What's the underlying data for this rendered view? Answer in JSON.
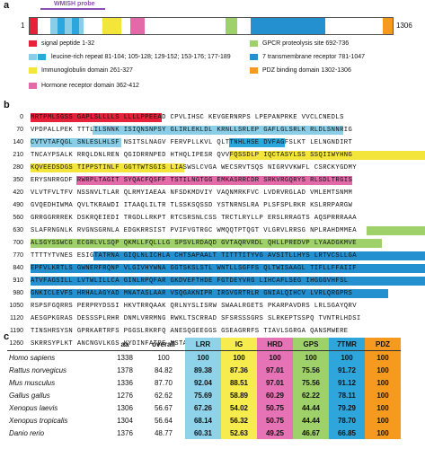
{
  "panel_a": {
    "label": "a",
    "probe_label": "WMISH probe",
    "start": "1",
    "end": "1306",
    "legend": [
      {
        "text": "signal peptide 1-32",
        "colors": [
          "#e6213a"
        ]
      },
      {
        "text": "GPCR proteolysis site 692-736",
        "colors": [
          "#9fd16a"
        ]
      },
      {
        "text": "leucine-rich repeat 81-104; 105-128; 129-152; 153-176; 177-189",
        "colors": [
          "#89cde6",
          "#2ca7de"
        ]
      },
      {
        "text": "7 transmembrane receptor 781-1047",
        "colors": [
          "#2590d0"
        ]
      },
      {
        "text": "Immunoglobulin domain 261-327",
        "colors": [
          "#f4e53a"
        ]
      },
      {
        "text": "PDZ binding domain 1302-1306",
        "colors": [
          "#f59a1e"
        ]
      },
      {
        "text": "Hormone receptor domain 362-412",
        "colors": [
          "#e26aa8"
        ]
      }
    ]
  },
  "panel_b": {
    "label": "b",
    "rows": [
      {
        "num": "0",
        "seq": "MRTPMLSGSS GAPLSLLLLS LLLLPPEEAD CPVLIHSC KEVGERNRPS LPEPANPRKE VVCLCNEDLS"
      },
      {
        "num": "70",
        "seq": "VPDPALLPEK TTTLILSNNK ISIQNSNPSY GLIRLEKLDL KRNLLSRLEP GAFLGLSRLK RLDLSNNRIG"
      },
      {
        "num": "140",
        "seq": "CVTVTAFQGL SNLESLHLSF NSITSLNAGV FERVPLLKVL QLTTNHLHSE DVFAGFSLKT LELNGNDIRT"
      },
      {
        "num": "210",
        "seq": "TNCAYPSALK RRQLDNLREN QGIDRRNPED HTHQLIPESR QVVFQSSDLP IQCTASYLSS SSQIIWYHNG"
      },
      {
        "num": "280",
        "seq": "KQVEEDSDGS TIPPSTINLF GGTTWTSGIS LIASWSLCVGA WECSRVTSQS NIGRVVKWFL CSRCKYGDMY"
      },
      {
        "num": "350",
        "seq": "ERYSNRRGDF RWRPLTAGIT SYQACFQSFF TSTILNGTGG EMKASRRCDR SRKVRGQRYS RLSDLTRGIS"
      },
      {
        "num": "420",
        "seq": "VLVTFVLTFV NSSNVLTLAR QLRMYIAEAA NFSDKMDVIY VAQNMRKFVC LVDRVRGLAD VMLEMTSNMM"
      },
      {
        "num": "490",
        "seq": "GVQEDHIWMA QVLTKRAWDI ITAAQLILTR TLSSKSQSSD YSTNRNSLRA PLSFSPLRKR KSLRRPARGW"
      },
      {
        "num": "560",
        "seq": "GRRGGRRREK DSKRQEIEDI TRGDLLRKPT RTCSRSNLCSS TRCTLRYLLP ERSLRRAGTS AQSPRRRAAA"
      },
      {
        "num": "630",
        "seq": "SLAFRNGNLK RVGNSGRNLA EDGKRRSIST PVIFVGTRGC WMQQTPTQGT VLGRVLRRSG NPLRAHDMMEA"
      },
      {
        "num": "700",
        "seq": "ALSGYSSWCG ECGRLVLSQP QKMLLFQLLLG SPSVLRDAQD GVTAQRVRDL QHLLPREDVP LYAADGKMVE"
      },
      {
        "num": "770",
        "seq": "TTTTYTVNES ESIGTATRNA GIQLNLICHLA CHTSAPAALT TITTTITYVG AVSITLLHYS LRTVCSLLGA"
      },
      {
        "num": "840",
        "seq": "EPFVLKRTLS GWNERFRQNP VLGIVHYWNA GGTSKSLSTL WNTLLSGFFS QLTWISAAGL TIFLLFFAIIF"
      },
      {
        "num": "910",
        "seq": "ATVFAGSILL LVTWLILLCA GINLRPQFAR GKDVEFTHDE FGTDEYVRG LIHCAFLSEG IHGGGVHFSL"
      },
      {
        "num": "980",
        "seq": "GNKICLEVFS HRHALAGYAD MNATASLAAR VSQGAKNIPR IRGVGRTRLR GNIALQIHCV LVRLQRGPRS"
      },
      {
        "num": "1050",
        "seq": "RSPSFGQRRS PERPRYDSSI HKVTRRQAAK QRLNYSLISRW SWAALRGETS PKARPAVDRS LRLSGAYQRV"
      },
      {
        "num": "1120",
        "seq": "AESGPKGRAS DESSSPLRHR DNMLVRRMNG RWKLTSCRRAD SFSRSSSGRS SLRKEPTSSPQ TVNTRLHDSI"
      },
      {
        "num": "1190",
        "seq": "TINSHRSYSN GPRKARTRFS PGGSLRKRFQ ANESQGEEGGS GSEAGRRFS TIAVLSGRGA QANSMWERE"
      },
      {
        "num": "1260",
        "seq": "SKRRSYPLKT ANCNGVLKGS KYDINFATPE MSTAKKTGLN ESETTV"
      }
    ]
  },
  "panel_c": {
    "label": "c",
    "headers": [
      "",
      "aa",
      "overall",
      "LRR",
      "IG",
      "HRD",
      "GPS",
      "7TMR",
      "PDZ"
    ],
    "header_colors": [
      "",
      "",
      "",
      "#8fd3ea",
      "#f7ec4d",
      "#e573b5",
      "#9fd16a",
      "#2ea6dc",
      "#f59a1e"
    ],
    "rows": [
      {
        "species": "Homo sapiens",
        "aa": "1338",
        "overall": "100",
        "LRR": "100",
        "IG": "100",
        "HRD": "100",
        "GPS": "100",
        "7TMR": "100",
        "PDZ": "100"
      },
      {
        "species": "Rattus norvegicus",
        "aa": "1378",
        "overall": "84.82",
        "LRR": "89.38",
        "IG": "87.36",
        "HRD": "97.01",
        "GPS": "75.56",
        "7TMR": "91.72",
        "PDZ": "100"
      },
      {
        "species": "Mus musculus",
        "aa": "1336",
        "overall": "87.70",
        "LRR": "92.04",
        "IG": "88.51",
        "HRD": "97.01",
        "GPS": "75.56",
        "7TMR": "91.12",
        "PDZ": "100"
      },
      {
        "species": "Gallus gallus",
        "aa": "1276",
        "overall": "62.62",
        "LRR": "75.69",
        "IG": "58.89",
        "HRD": "60.29",
        "GPS": "62.22",
        "7TMR": "78.11",
        "PDZ": "100"
      },
      {
        "species": "Xenopus laevis",
        "aa": "1306",
        "overall": "56.67",
        "LRR": "67.26",
        "IG": "54.02",
        "HRD": "50.75",
        "GPS": "44.44",
        "7TMR": "79.29",
        "PDZ": "100"
      },
      {
        "species": "Xenopus tropicalis",
        "aa": "1304",
        "overall": "56.64",
        "LRR": "68.14",
        "IG": "56.32",
        "HRD": "50.75",
        "GPS": "44.44",
        "7TMR": "78.70",
        "PDZ": "100"
      },
      {
        "species": "Danio rerio",
        "aa": "1376",
        "overall": "48.77",
        "LRR": "60.31",
        "IG": "52.63",
        "HRD": "49.25",
        "GPS": "46.67",
        "7TMR": "66.85",
        "PDZ": "100"
      }
    ]
  }
}
